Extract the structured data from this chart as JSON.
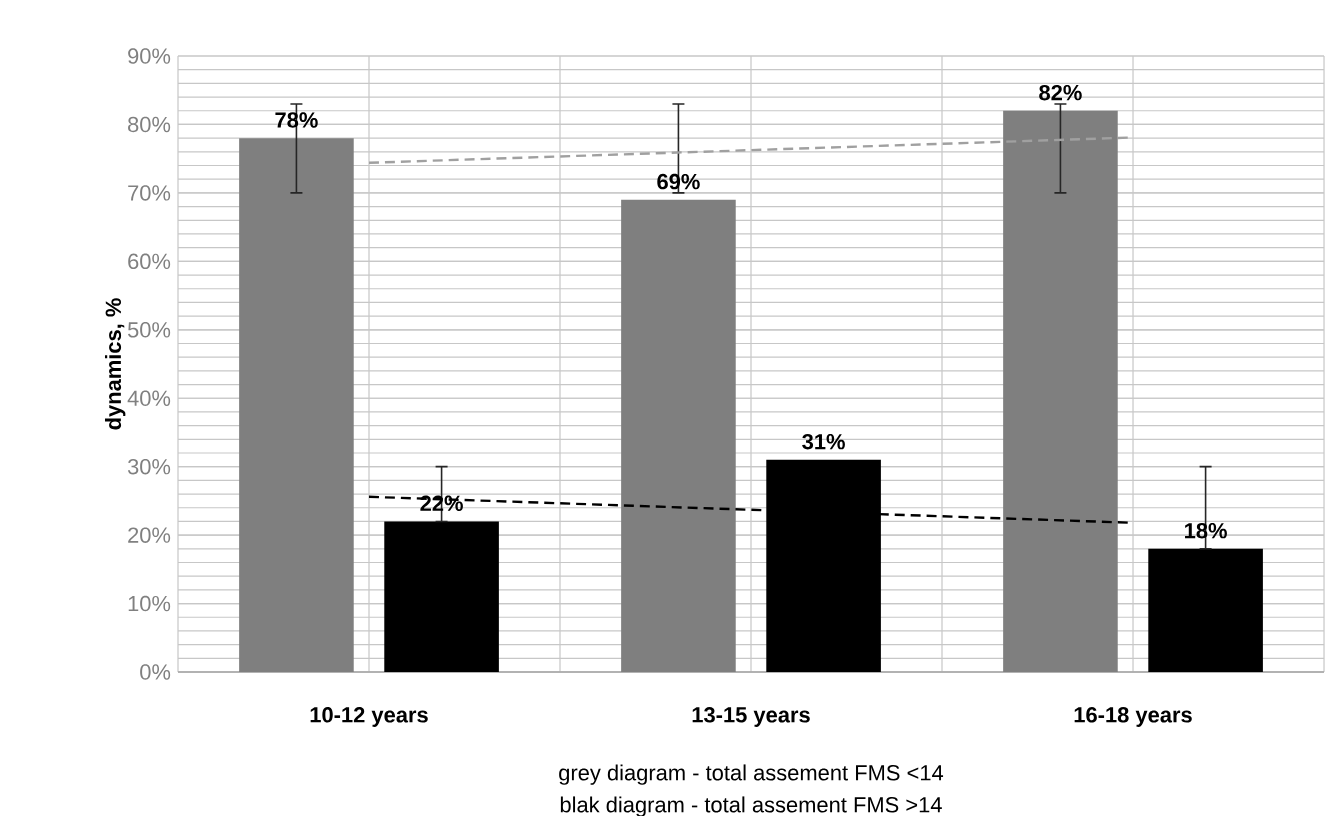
{
  "chart_data": {
    "type": "bar",
    "ylabel": "dynamics, %",
    "categories": [
      "10-12 years",
      "13-15 years",
      "16-18 years"
    ],
    "series": [
      {
        "color": "#7f7f7f",
        "values": [
          78,
          69,
          82
        ],
        "errors": [
          [
            70,
            83
          ],
          [
            70,
            83
          ],
          [
            70,
            83
          ]
        ],
        "value_labels": [
          "78%",
          "69%",
          "82%"
        ]
      },
      {
        "color": "#000000",
        "values": [
          22,
          31,
          18
        ],
        "errors": [
          [
            22,
            30
          ],
          null,
          [
            18,
            30
          ]
        ],
        "value_labels": [
          "22%",
          "31%",
          "18%"
        ]
      },
      {
        "type": "line",
        "line_style": "dashed",
        "color": "#a0a0a0",
        "x": [
          "10-12 years",
          "16-18 years"
        ],
        "values": [
          74.4,
          78.1
        ]
      },
      {
        "type": "line",
        "line_style": "dashed",
        "color": "#000000",
        "x": [
          "10-12 years",
          "16-18 years"
        ],
        "values": [
          25.6,
          21.8
        ]
      }
    ],
    "ylim": [
      0,
      90
    ],
    "yticks": [
      {
        "value": 0,
        "label": "0%"
      },
      {
        "value": 10,
        "label": "10%"
      },
      {
        "value": 20,
        "label": "20%"
      },
      {
        "value": 30,
        "label": "30%"
      },
      {
        "value": 40,
        "label": "40%"
      },
      {
        "value": 50,
        "label": "50%"
      },
      {
        "value": 60,
        "label": "60%"
      },
      {
        "value": 70,
        "label": "70%"
      },
      {
        "value": 80,
        "label": "80%"
      },
      {
        "value": 90,
        "label": "90%"
      }
    ],
    "grid": true,
    "annotations": [
      "grey diagram - total assement FMS <14",
      "blak diagram - total assement FMS >14"
    ]
  }
}
